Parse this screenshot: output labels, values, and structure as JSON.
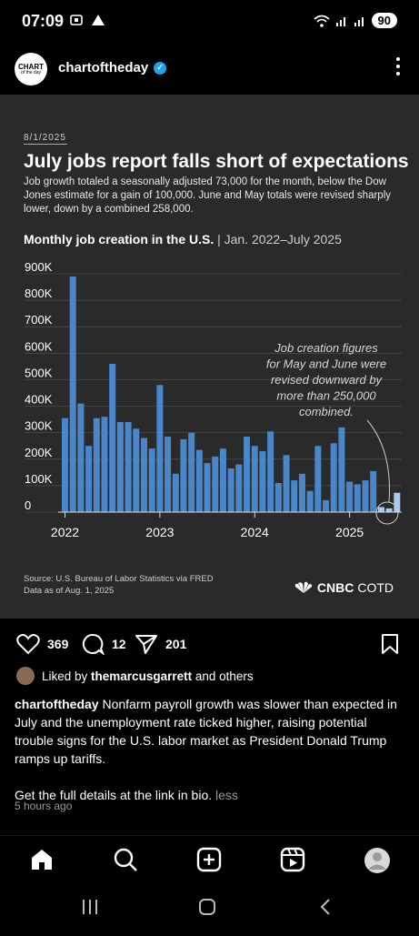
{
  "status": {
    "time": "07:09",
    "battery": "90"
  },
  "post": {
    "username": "chartoftheday",
    "avatar_text_1": "CHART",
    "avatar_text_2": "of the day",
    "date": "8/1/2025",
    "title": "July jobs report falls short of expectations",
    "subtitle": "Job growth totaled a seasonally adjusted 73,000 for the month, below the Dow Jones estimate for a gain of 100,000. June and May totals were revised sharply lower, down by a combined 258,000.",
    "chart_heading": "Monthly job creation in the U.S.",
    "chart_range": " | Jan. 2022–July 2025",
    "source_line1": "Source: U.S. Bureau of Labor Statistics via FRED",
    "source_line2": "Data as of Aug. 1, 2025",
    "brand_a": "CNBC",
    "brand_b": "COTD",
    "likes": "369",
    "comments": "12",
    "shares": "201",
    "liked_by_prefix": "Liked by ",
    "liked_by_user": "themarcusgarrett",
    "liked_by_suffix": " and others",
    "caption_user": "chartoftheday",
    "caption_text": " Nonfarm payroll growth was slower than expected in July and the unemployment rate ticked higher, raising potential trouble signs for the U.S. labor market as President Donald Trump ramps up tariffs.",
    "caption_more": "Get the full details at the link in bio.",
    "less": " less",
    "time_ago": "5 hours ago"
  },
  "icons": {
    "like": "heart-icon",
    "comment": "comment-icon",
    "share": "send-icon",
    "save": "bookmark-icon",
    "home": "home-icon",
    "search": "search-icon",
    "create": "plus-icon",
    "reels": "reels-icon",
    "profile": "profile-icon"
  },
  "chart_data": {
    "type": "bar",
    "yticks": [
      "900K",
      "800K",
      "700K",
      "600K",
      "500K",
      "400K",
      "300K",
      "200K",
      "100K",
      "0"
    ],
    "xticks": [
      "2022",
      "2023",
      "2024",
      "2025"
    ],
    "ylim": [
      0,
      900000
    ],
    "annotation": [
      "Job creation figures",
      "for May and June were",
      "revised downward by",
      "more than 250,000",
      "combined."
    ],
    "values": [
      355000,
      890000,
      410000,
      250000,
      355000,
      360000,
      560000,
      340000,
      340000,
      315000,
      280000,
      240000,
      480000,
      285000,
      145000,
      275000,
      300000,
      235000,
      185000,
      210000,
      240000,
      165000,
      180000,
      285000,
      250000,
      230000,
      305000,
      110000,
      215000,
      120000,
      145000,
      80000,
      250000,
      45000,
      260000,
      320000,
      115000,
      105000,
      120000,
      155000,
      19000,
      14000,
      73000
    ],
    "highlight_last": 3
  }
}
